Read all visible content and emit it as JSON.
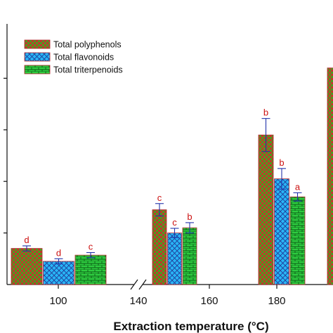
{
  "chart_data": {
    "type": "bar",
    "title": "",
    "xlabel": "Extraction temperature (°C)",
    "ylabel": "",
    "ylim": [
      0,
      5
    ],
    "axis_break_between": [
      100,
      140
    ],
    "x_ticks": [
      "100",
      "140",
      "160",
      "180"
    ],
    "categories": [
      "100",
      "150",
      "180"
    ],
    "legend_position": "top-left",
    "series": [
      {
        "name": "Total polyphenols",
        "pattern": "checker",
        "colors": [
          "#c0392b",
          "#4a9e1f"
        ],
        "values": [
          0.7,
          1.45,
          2.9
        ],
        "errors": [
          0.05,
          0.12,
          0.32
        ],
        "letters": [
          "d",
          "c",
          "b"
        ]
      },
      {
        "name": "Total flavonoids",
        "pattern": "crosshatch",
        "colors": [
          "#29b6f6",
          "#1f3a99"
        ],
        "values": [
          0.45,
          1.0,
          2.05
        ],
        "errors": [
          0.05,
          0.09,
          0.2
        ],
        "letters": [
          "d",
          "c",
          "b"
        ]
      },
      {
        "name": "Total triterpenoids",
        "pattern": "brick",
        "colors": [
          "#2ecc40",
          "#0b5a15"
        ],
        "values": [
          0.57,
          1.1,
          1.7
        ],
        "errors": [
          0.05,
          0.1,
          0.08
        ],
        "letters": [
          "c",
          "b",
          "a"
        ]
      }
    ],
    "clipped_bar": {
      "series": "Total polyphenols",
      "value": 4.2
    }
  }
}
